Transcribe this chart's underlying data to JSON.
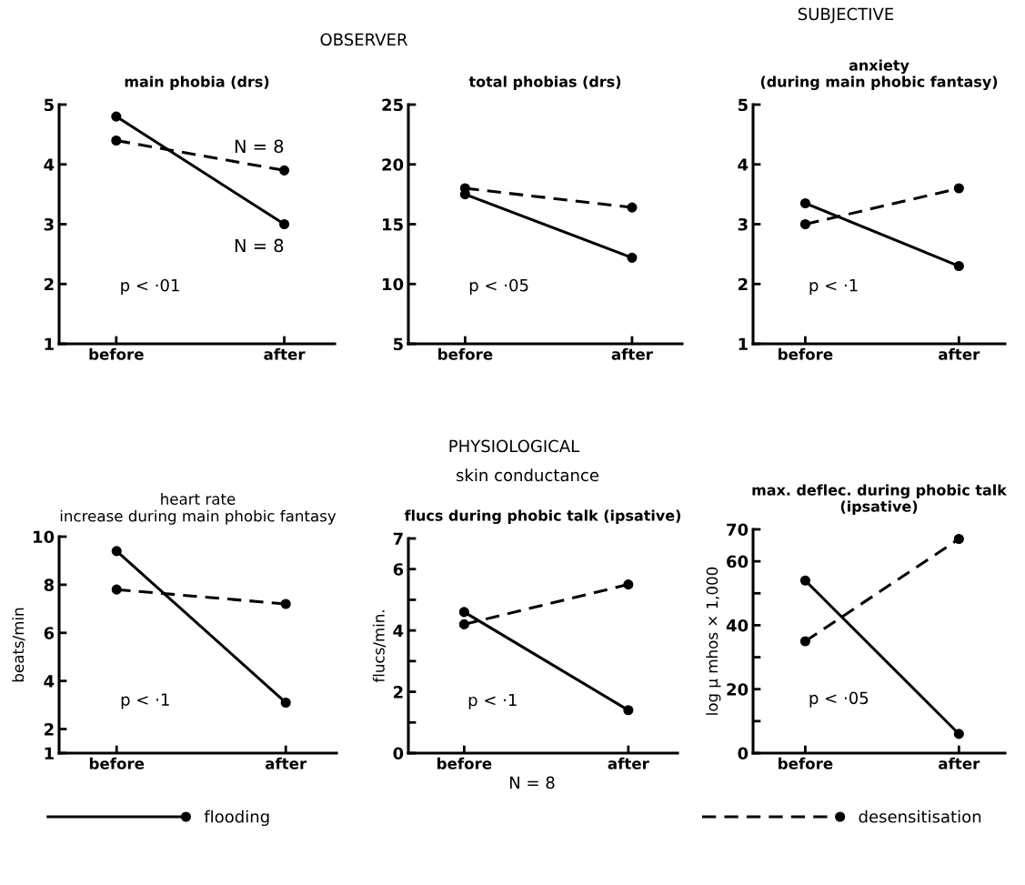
{
  "chart_data": [
    {
      "type": "line",
      "title": "main phobia (drs)",
      "categories": [
        "before",
        "after"
      ],
      "ylim": [
        1,
        5
      ],
      "yticks": [
        1,
        2,
        3,
        4,
        5
      ],
      "grid": false,
      "legend": false,
      "marker": "circle",
      "annotations": [
        "p < ·01",
        "OBSERVER",
        {
          "text": "N = 8",
          "x": "after",
          "y": 3.9
        },
        {
          "text": "N = 8",
          "x": "after",
          "y": 3.0
        }
      ],
      "series": [
        {
          "color": "#000000",
          "line_style": "solid",
          "values": [
            4.8,
            3.0
          ]
        },
        {
          "color": "#000000",
          "line_style": "dashed",
          "values": [
            4.4,
            3.9
          ]
        }
      ]
    },
    {
      "type": "line",
      "title": "total phobias (drs)",
      "categories": [
        "before",
        "after"
      ],
      "ylim": [
        5,
        25
      ],
      "yticks": [
        5,
        10,
        15,
        20,
        25
      ],
      "grid": false,
      "legend": false,
      "marker": "circle",
      "annotations": [
        "p < ·05"
      ],
      "series": [
        {
          "color": "#000000",
          "line_style": "solid",
          "values": [
            17.5,
            12.2
          ]
        },
        {
          "color": "#000000",
          "line_style": "dashed",
          "values": [
            18.0,
            16.4
          ]
        }
      ]
    },
    {
      "type": "line",
      "title": "anxiety\n(during main phobic fantasy)",
      "categories": [
        "before",
        "after"
      ],
      "ylim": [
        1,
        5
      ],
      "yticks": [
        1,
        2,
        3,
        4,
        5
      ],
      "grid": false,
      "legend": false,
      "marker": "circle",
      "annotations": [
        "p < ·1",
        "SUBJECTIVE"
      ],
      "series": [
        {
          "color": "#000000",
          "line_style": "solid",
          "values": [
            3.35,
            2.3
          ]
        },
        {
          "color": "#000000",
          "line_style": "dashed",
          "values": [
            3.0,
            3.6
          ]
        }
      ]
    },
    {
      "type": "line",
      "title": "heart rate",
      "subtitle": "increase during main phobic fantasy",
      "ylabel": "beats/min",
      "categories": [
        "before",
        "after"
      ],
      "ylim": [
        1,
        10
      ],
      "yticks": [
        1,
        2,
        4,
        6,
        8,
        10
      ],
      "grid": false,
      "legend": false,
      "marker": "circle",
      "annotations": [
        "p < ·1",
        "PHYSIOLOGICAL"
      ],
      "series": [
        {
          "color": "#000000",
          "line_style": "solid",
          "values": [
            9.4,
            3.1
          ]
        },
        {
          "color": "#000000",
          "line_style": "dashed",
          "values": [
            7.8,
            7.2
          ]
        }
      ]
    },
    {
      "type": "line",
      "title": "flucs during phobic talk (ipsative)",
      "ylabel": "flucs/min.",
      "categories": [
        "before",
        "after"
      ],
      "ylim": [
        0,
        7
      ],
      "yticks": [
        0,
        {
          "value": 1,
          "label": null
        },
        2,
        {
          "value": 3,
          "label": null
        },
        4,
        {
          "value": 5,
          "label": null
        },
        6,
        7
      ],
      "grid": false,
      "legend": false,
      "marker": "circle",
      "annotations": [
        "p < ·1",
        "skin conductance"
      ],
      "series": [
        {
          "color": "#000000",
          "line_style": "solid",
          "values": [
            4.6,
            1.4
          ]
        },
        {
          "color": "#000000",
          "line_style": "dashed",
          "values": [
            4.2,
            5.5
          ]
        }
      ]
    },
    {
      "type": "line",
      "title": "max. deflec. during phobic talk\n(ipsative)",
      "ylabel": "log μ mhos × 1,000",
      "categories": [
        "before",
        "after"
      ],
      "ylim": [
        0,
        70
      ],
      "yticks": [
        0,
        {
          "value": 10,
          "label": null
        },
        20,
        {
          "value": 30,
          "label": null
        },
        40,
        {
          "value": 50,
          "label": null
        },
        60,
        70
      ],
      "grid": false,
      "legend": "bottom",
      "marker": "circle",
      "annotations": [
        "p < ·05",
        "N = 8"
      ],
      "series": [
        {
          "name": "flooding",
          "color": "#000000",
          "line_style": "solid",
          "values": [
            54,
            6
          ]
        },
        {
          "name": "desensitisation",
          "color": "#000000",
          "line_style": "dashed",
          "values": [
            35,
            67
          ]
        }
      ]
    }
  ]
}
